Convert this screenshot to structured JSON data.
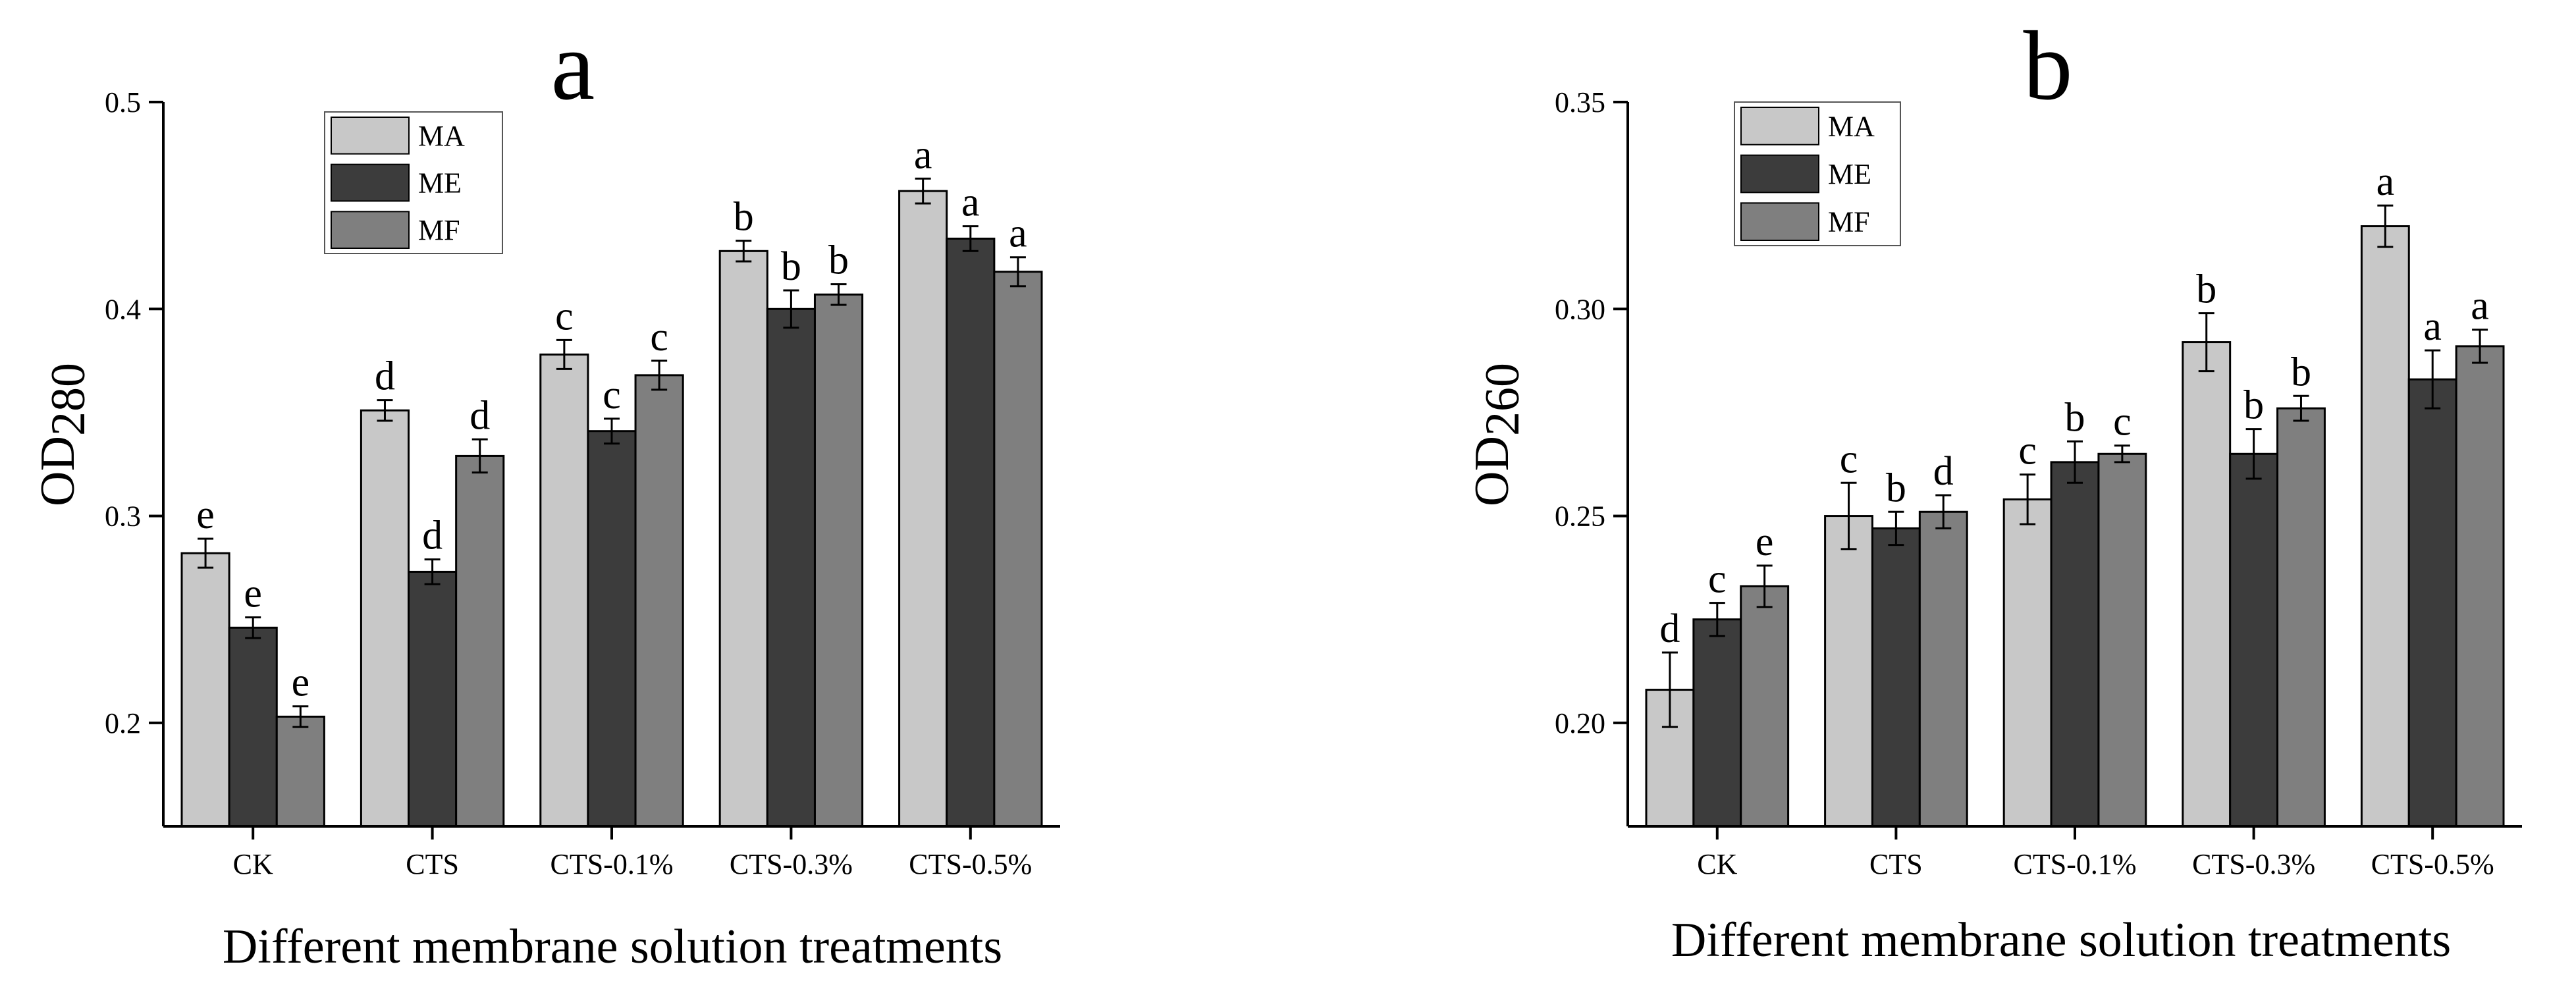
{
  "chart_data": [
    {
      "panel_letter": "a",
      "type": "bar",
      "title": "",
      "xlabel": "Different membrane solution treatments",
      "ylabel_main": "OD",
      "ylabel_sub": "280",
      "ylim": [
        0.15,
        0.5
      ],
      "yticks": [
        "0.2",
        "0.3",
        "0.4",
        "0.5"
      ],
      "ytick_values": [
        0.2,
        0.3,
        0.4,
        0.5
      ],
      "categories": [
        "CK",
        "CTS",
        "CTS-0.1%",
        "CTS-0.3%",
        "CTS-0.5%"
      ],
      "legend_position": "top-left",
      "series": [
        {
          "name": "MA",
          "color": "#c8c8c8",
          "values": [
            0.282,
            0.351,
            0.378,
            0.428,
            0.457
          ],
          "errors": [
            0.007,
            0.005,
            0.007,
            0.005,
            0.006
          ],
          "labels": [
            "e",
            "d",
            "c",
            "b",
            "a"
          ]
        },
        {
          "name": "ME",
          "color": "#3c3c3c",
          "values": [
            0.246,
            0.273,
            0.341,
            0.4,
            0.434
          ],
          "errors": [
            0.005,
            0.006,
            0.006,
            0.009,
            0.006
          ],
          "labels": [
            "e",
            "d",
            "c",
            "b",
            "a"
          ]
        },
        {
          "name": "MF",
          "color": "#7f7f7f",
          "values": [
            0.203,
            0.329,
            0.368,
            0.407,
            0.418
          ],
          "errors": [
            0.005,
            0.008,
            0.007,
            0.005,
            0.007
          ],
          "labels": [
            "e",
            "d",
            "c",
            "b",
            "a"
          ]
        }
      ]
    },
    {
      "panel_letter": "b",
      "type": "bar",
      "title": "",
      "xlabel": "Different membrane solution treatments",
      "ylabel_main": "OD",
      "ylabel_sub": "260",
      "ylim": [
        0.175,
        0.35
      ],
      "yticks": [
        "0.20",
        "0.25",
        "0.30",
        "0.35"
      ],
      "ytick_values": [
        0.2,
        0.25,
        0.3,
        0.35
      ],
      "categories": [
        "CK",
        "CTS",
        "CTS-0.1%",
        "CTS-0.3%",
        "CTS-0.5%"
      ],
      "legend_position": "top-left",
      "series": [
        {
          "name": "MA",
          "color": "#c8c8c8",
          "values": [
            0.208,
            0.25,
            0.254,
            0.292,
            0.32
          ],
          "errors": [
            0.009,
            0.008,
            0.006,
            0.007,
            0.005
          ],
          "labels": [
            "d",
            "c",
            "c",
            "b",
            "a"
          ]
        },
        {
          "name": "ME",
          "color": "#3c3c3c",
          "values": [
            0.225,
            0.247,
            0.263,
            0.265,
            0.283
          ],
          "errors": [
            0.004,
            0.004,
            0.005,
            0.006,
            0.007
          ],
          "labels": [
            "c",
            "b",
            "b",
            "b",
            "a"
          ]
        },
        {
          "name": "MF",
          "color": "#7f7f7f",
          "values": [
            0.233,
            0.251,
            0.265,
            0.276,
            0.291
          ],
          "errors": [
            0.005,
            0.004,
            0.002,
            0.003,
            0.004
          ],
          "labels": [
            "e",
            "d",
            "c",
            "b",
            "a"
          ]
        }
      ]
    }
  ]
}
